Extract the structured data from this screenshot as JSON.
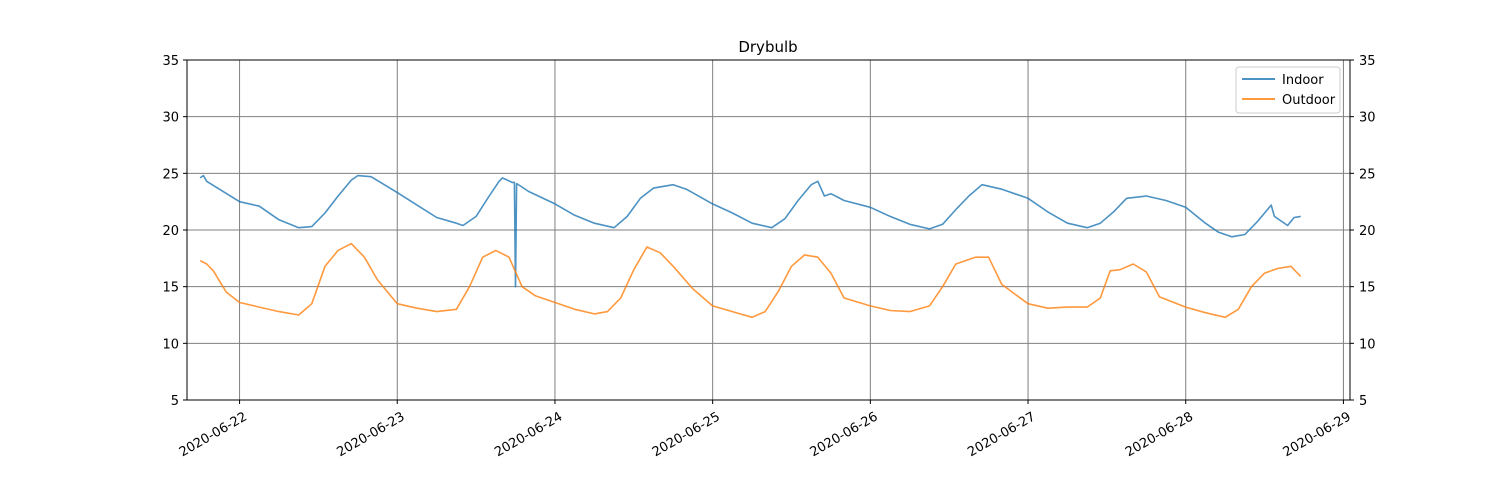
{
  "chart_data": {
    "type": "line",
    "title": "Drybulb",
    "xlabel": "",
    "ylabel": "",
    "ylim": [
      5,
      35
    ],
    "yticks": [
      5,
      10,
      15,
      20,
      25,
      30,
      35
    ],
    "xlim": [
      "2020-06-21T16:00",
      "2020-06-29T01:00"
    ],
    "xticks": [
      "2020-06-22",
      "2020-06-23",
      "2020-06-24",
      "2020-06-25",
      "2020-06-26",
      "2020-06-27",
      "2020-06-28",
      "2020-06-29"
    ],
    "grid": true,
    "right_axis_mirrored": true,
    "legend_position": "top-right",
    "series": [
      {
        "name": "Indoor",
        "color": "#1f77b4",
        "points": [
          [
            "2020-06-21T18:00",
            24.6
          ],
          [
            "2020-06-21T18:30",
            24.8
          ],
          [
            "2020-06-21T19:00",
            24.3
          ],
          [
            "2020-06-22T00:00",
            22.5
          ],
          [
            "2020-06-22T03:00",
            22.1
          ],
          [
            "2020-06-22T06:00",
            20.9
          ],
          [
            "2020-06-22T09:00",
            20.2
          ],
          [
            "2020-06-22T11:00",
            20.3
          ],
          [
            "2020-06-22T13:00",
            21.5
          ],
          [
            "2020-06-22T15:00",
            23.0
          ],
          [
            "2020-06-22T17:00",
            24.4
          ],
          [
            "2020-06-22T18:00",
            24.8
          ],
          [
            "2020-06-22T20:00",
            24.7
          ],
          [
            "2020-06-23T00:00",
            23.3
          ],
          [
            "2020-06-23T03:00",
            22.2
          ],
          [
            "2020-06-23T06:00",
            21.1
          ],
          [
            "2020-06-23T09:00",
            20.6
          ],
          [
            "2020-06-23T10:00",
            20.4
          ],
          [
            "2020-06-23T12:00",
            21.2
          ],
          [
            "2020-06-23T14:00",
            23.0
          ],
          [
            "2020-06-23T15:30",
            24.3
          ],
          [
            "2020-06-23T16:00",
            24.6
          ],
          [
            "2020-06-23T17:30",
            24.2
          ],
          [
            "2020-06-23T17:50",
            24.2
          ],
          [
            "2020-06-23T18:00",
            15.0
          ],
          [
            "2020-06-23T18:10",
            24.1
          ],
          [
            "2020-06-23T20:00",
            23.4
          ],
          [
            "2020-06-24T00:00",
            22.3
          ],
          [
            "2020-06-24T03:00",
            21.3
          ],
          [
            "2020-06-24T06:00",
            20.6
          ],
          [
            "2020-06-24T09:00",
            20.2
          ],
          [
            "2020-06-24T11:00",
            21.2
          ],
          [
            "2020-06-24T13:00",
            22.8
          ],
          [
            "2020-06-24T15:00",
            23.7
          ],
          [
            "2020-06-24T18:00",
            24.0
          ],
          [
            "2020-06-24T20:00",
            23.6
          ],
          [
            "2020-06-25T00:00",
            22.3
          ],
          [
            "2020-06-25T03:00",
            21.5
          ],
          [
            "2020-06-25T06:00",
            20.6
          ],
          [
            "2020-06-25T09:00",
            20.2
          ],
          [
            "2020-06-25T11:00",
            21.0
          ],
          [
            "2020-06-25T13:00",
            22.6
          ],
          [
            "2020-06-25T15:00",
            24.0
          ],
          [
            "2020-06-25T16:00",
            24.3
          ],
          [
            "2020-06-25T17:00",
            23.0
          ],
          [
            "2020-06-25T18:00",
            23.2
          ],
          [
            "2020-06-25T20:00",
            22.6
          ],
          [
            "2020-06-26T00:00",
            22.0
          ],
          [
            "2020-06-26T03:00",
            21.2
          ],
          [
            "2020-06-26T06:00",
            20.5
          ],
          [
            "2020-06-26T09:00",
            20.1
          ],
          [
            "2020-06-26T11:00",
            20.5
          ],
          [
            "2020-06-26T13:00",
            21.8
          ],
          [
            "2020-06-26T15:00",
            23.0
          ],
          [
            "2020-06-26T17:00",
            24.0
          ],
          [
            "2020-06-26T20:00",
            23.6
          ],
          [
            "2020-06-27T00:00",
            22.8
          ],
          [
            "2020-06-27T03:00",
            21.6
          ],
          [
            "2020-06-27T06:00",
            20.6
          ],
          [
            "2020-06-27T09:00",
            20.2
          ],
          [
            "2020-06-27T11:00",
            20.6
          ],
          [
            "2020-06-27T13:00",
            21.6
          ],
          [
            "2020-06-27T15:00",
            22.8
          ],
          [
            "2020-06-27T18:00",
            23.0
          ],
          [
            "2020-06-27T21:00",
            22.6
          ],
          [
            "2020-06-28T00:00",
            22.0
          ],
          [
            "2020-06-28T03:00",
            20.6
          ],
          [
            "2020-06-28T05:00",
            19.8
          ],
          [
            "2020-06-28T07:00",
            19.4
          ],
          [
            "2020-06-28T09:00",
            19.6
          ],
          [
            "2020-06-28T11:00",
            20.8
          ],
          [
            "2020-06-28T13:00",
            22.2
          ],
          [
            "2020-06-28T13:30",
            21.2
          ],
          [
            "2020-06-28T15:30",
            20.4
          ],
          [
            "2020-06-28T16:30",
            21.1
          ],
          [
            "2020-06-28T17:30",
            21.2
          ]
        ]
      },
      {
        "name": "Outdoor",
        "color": "#ff7f0e",
        "points": [
          [
            "2020-06-21T18:00",
            17.3
          ],
          [
            "2020-06-21T19:00",
            17.0
          ],
          [
            "2020-06-21T20:00",
            16.4
          ],
          [
            "2020-06-21T22:00",
            14.5
          ],
          [
            "2020-06-22T00:00",
            13.6
          ],
          [
            "2020-06-22T03:00",
            13.2
          ],
          [
            "2020-06-22T06:00",
            12.8
          ],
          [
            "2020-06-22T09:00",
            12.5
          ],
          [
            "2020-06-22T11:00",
            13.5
          ],
          [
            "2020-06-22T13:00",
            16.8
          ],
          [
            "2020-06-22T15:00",
            18.2
          ],
          [
            "2020-06-22T17:00",
            18.8
          ],
          [
            "2020-06-22T19:00",
            17.6
          ],
          [
            "2020-06-22T21:00",
            15.6
          ],
          [
            "2020-06-23T00:00",
            13.5
          ],
          [
            "2020-06-23T03:00",
            13.1
          ],
          [
            "2020-06-23T06:00",
            12.8
          ],
          [
            "2020-06-23T09:00",
            13.0
          ],
          [
            "2020-06-23T11:00",
            15.0
          ],
          [
            "2020-06-23T13:00",
            17.6
          ],
          [
            "2020-06-23T15:00",
            18.2
          ],
          [
            "2020-06-23T17:00",
            17.6
          ],
          [
            "2020-06-23T19:00",
            15.0
          ],
          [
            "2020-06-23T21:00",
            14.2
          ],
          [
            "2020-06-24T00:00",
            13.6
          ],
          [
            "2020-06-24T03:00",
            13.0
          ],
          [
            "2020-06-24T06:00",
            12.6
          ],
          [
            "2020-06-24T08:00",
            12.8
          ],
          [
            "2020-06-24T10:00",
            14.0
          ],
          [
            "2020-06-24T12:00",
            16.5
          ],
          [
            "2020-06-24T14:00",
            18.5
          ],
          [
            "2020-06-24T16:00",
            18.0
          ],
          [
            "2020-06-24T18:00",
            16.8
          ],
          [
            "2020-06-24T21:00",
            14.8
          ],
          [
            "2020-06-25T00:00",
            13.3
          ],
          [
            "2020-06-25T03:00",
            12.8
          ],
          [
            "2020-06-25T06:00",
            12.3
          ],
          [
            "2020-06-25T08:00",
            12.8
          ],
          [
            "2020-06-25T10:00",
            14.6
          ],
          [
            "2020-06-25T12:00",
            16.8
          ],
          [
            "2020-06-25T14:00",
            17.8
          ],
          [
            "2020-06-25T16:00",
            17.6
          ],
          [
            "2020-06-25T18:00",
            16.2
          ],
          [
            "2020-06-25T20:00",
            14.0
          ],
          [
            "2020-06-26T00:00",
            13.3
          ],
          [
            "2020-06-26T03:00",
            12.9
          ],
          [
            "2020-06-26T06:00",
            12.8
          ],
          [
            "2020-06-26T09:00",
            13.3
          ],
          [
            "2020-06-26T11:00",
            15.0
          ],
          [
            "2020-06-26T13:00",
            17.0
          ],
          [
            "2020-06-26T16:00",
            17.6
          ],
          [
            "2020-06-26T18:00",
            17.6
          ],
          [
            "2020-06-26T20:00",
            15.2
          ],
          [
            "2020-06-27T00:00",
            13.5
          ],
          [
            "2020-06-27T03:00",
            13.1
          ],
          [
            "2020-06-27T06:00",
            13.2
          ],
          [
            "2020-06-27T09:00",
            13.2
          ],
          [
            "2020-06-27T11:00",
            14.0
          ],
          [
            "2020-06-27T12:30",
            16.4
          ],
          [
            "2020-06-27T14:00",
            16.5
          ],
          [
            "2020-06-27T16:00",
            17.0
          ],
          [
            "2020-06-27T18:00",
            16.3
          ],
          [
            "2020-06-27T20:00",
            14.1
          ],
          [
            "2020-06-28T00:00",
            13.2
          ],
          [
            "2020-06-28T03:00",
            12.7
          ],
          [
            "2020-06-28T06:00",
            12.3
          ],
          [
            "2020-06-28T08:00",
            13.0
          ],
          [
            "2020-06-28T10:00",
            15.0
          ],
          [
            "2020-06-28T12:00",
            16.2
          ],
          [
            "2020-06-28T14:00",
            16.6
          ],
          [
            "2020-06-28T16:00",
            16.8
          ],
          [
            "2020-06-28T17:30",
            15.9
          ]
        ]
      }
    ]
  }
}
